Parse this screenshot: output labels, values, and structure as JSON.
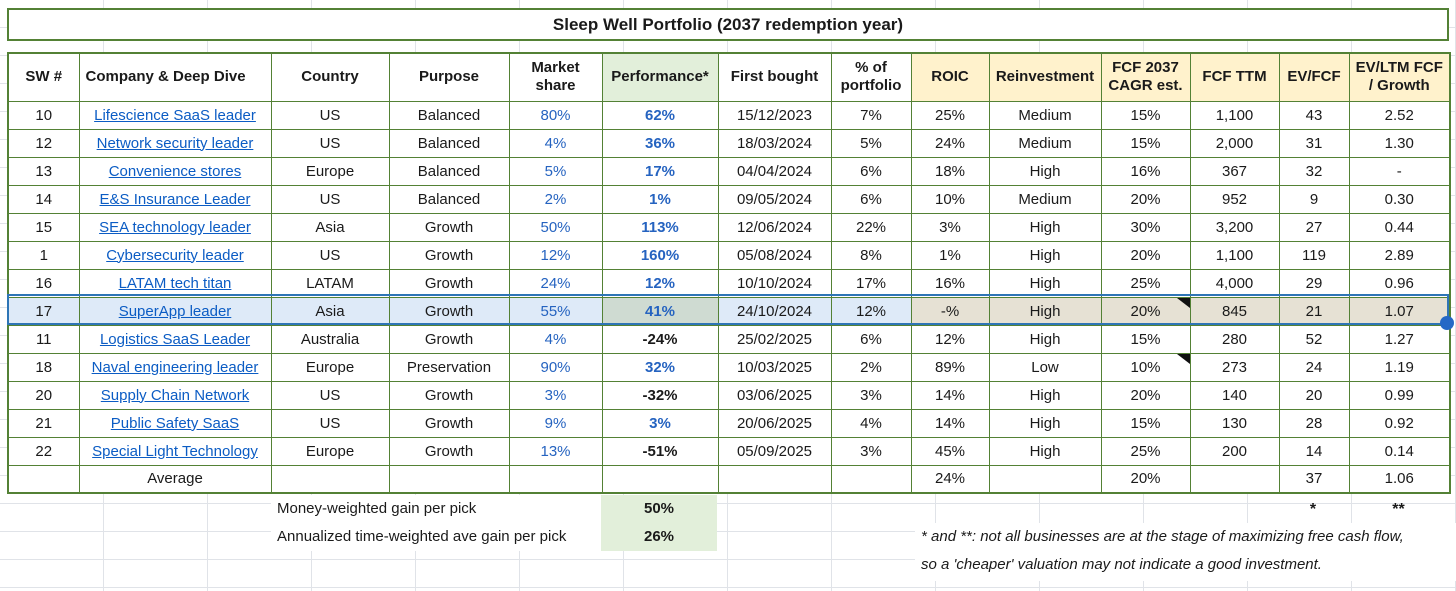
{
  "title": "Sleep Well Portfolio (2037 redemption year)",
  "table": {
    "columns": [
      "SW #",
      "Company & Deep Dive",
      "Country",
      "Purpose",
      "Market share",
      "Performance*",
      "First bought",
      "% of portfolio",
      "ROIC",
      "Reinvestment",
      "FCF 2037 CAGR est.",
      "FCF TTM",
      "EV/FCF",
      "EV/LTM FCF / Growth"
    ],
    "rows": [
      {
        "sw": "10",
        "company": "Lifescience SaaS leader",
        "country": "US",
        "purpose": "Balanced",
        "market_share": "80%",
        "performance": "62%",
        "first_bought": "15/12/2023",
        "pct_portfolio": "7%",
        "roic": "25%",
        "reinvestment": "Medium",
        "fcf_cagr": "15%",
        "fcf_ttm": "1,100",
        "ev_fcf": "43",
        "ev_ltm_fcf_growth": "2.52"
      },
      {
        "sw": "12",
        "company": "Network security leader",
        "country": "US",
        "purpose": "Balanced",
        "market_share": "4%",
        "performance": "36%",
        "first_bought": "18/03/2024",
        "pct_portfolio": "5%",
        "roic": "24%",
        "reinvestment": "Medium",
        "fcf_cagr": "15%",
        "fcf_ttm": "2,000",
        "ev_fcf": "31",
        "ev_ltm_fcf_growth": "1.30"
      },
      {
        "sw": "13",
        "company": "Convenience stores",
        "country": "Europe",
        "purpose": "Balanced",
        "market_share": "5%",
        "performance": "17%",
        "first_bought": "04/04/2024",
        "pct_portfolio": "6%",
        "roic": "18%",
        "reinvestment": "High",
        "fcf_cagr": "16%",
        "fcf_ttm": "367",
        "ev_fcf": "32",
        "ev_ltm_fcf_growth": "-"
      },
      {
        "sw": "14",
        "company": "E&S Insurance Leader",
        "country": "US",
        "purpose": "Balanced",
        "market_share": "2%",
        "performance": "1%",
        "first_bought": "09/05/2024",
        "pct_portfolio": "6%",
        "roic": "10%",
        "reinvestment": "Medium",
        "fcf_cagr": "20%",
        "fcf_ttm": "952",
        "ev_fcf": "9",
        "ev_ltm_fcf_growth": "0.30"
      },
      {
        "sw": "15",
        "company": "SEA technology leader",
        "country": "Asia",
        "purpose": "Growth",
        "market_share": "50%",
        "performance": "113%",
        "first_bought": "12/06/2024",
        "pct_portfolio": "22%",
        "roic": "3%",
        "reinvestment": "High",
        "fcf_cagr": "30%",
        "fcf_ttm": "3,200",
        "ev_fcf": "27",
        "ev_ltm_fcf_growth": "0.44"
      },
      {
        "sw": "1",
        "company": "Cybersecurity leader",
        "country": "US",
        "purpose": "Growth",
        "market_share": "12%",
        "performance": "160%",
        "first_bought": "05/08/2024",
        "pct_portfolio": "8%",
        "roic": "1%",
        "reinvestment": "High",
        "fcf_cagr": "20%",
        "fcf_ttm": "1,100",
        "ev_fcf": "119",
        "ev_ltm_fcf_growth": "2.89"
      },
      {
        "sw": "16",
        "company": "LATAM tech titan",
        "country": "LATAM",
        "purpose": "Growth",
        "market_share": "24%",
        "performance": "12%",
        "first_bought": "10/10/2024",
        "pct_portfolio": "17%",
        "roic": "16%",
        "reinvestment": "High",
        "fcf_cagr": "25%",
        "fcf_ttm": "4,000",
        "ev_fcf": "29",
        "ev_ltm_fcf_growth": "0.96"
      },
      {
        "sw": "17",
        "company": "SuperApp leader",
        "country": "Asia",
        "purpose": "Growth",
        "market_share": "55%",
        "performance": "41%",
        "first_bought": "24/10/2024",
        "pct_portfolio": "12%",
        "roic": "-%",
        "reinvestment": "High",
        "fcf_cagr": "20%",
        "fcf_ttm": "845",
        "ev_fcf": "21",
        "ev_ltm_fcf_growth": "1.07",
        "highlighted": true,
        "note_on_cagr": true
      },
      {
        "sw": "11",
        "company": "Logistics SaaS Leader",
        "country": "Australia",
        "purpose": "Growth",
        "market_share": "4%",
        "performance": "-24%",
        "first_bought": "25/02/2025",
        "pct_portfolio": "6%",
        "roic": "12%",
        "reinvestment": "High",
        "fcf_cagr": "15%",
        "fcf_ttm": "280",
        "ev_fcf": "52",
        "ev_ltm_fcf_growth": "1.27"
      },
      {
        "sw": "18",
        "company": "Naval engineering leader",
        "country": "Europe",
        "purpose": "Preservation",
        "market_share": "90%",
        "performance": "32%",
        "first_bought": "10/03/2025",
        "pct_portfolio": "2%",
        "roic": "89%",
        "reinvestment": "Low",
        "fcf_cagr": "10%",
        "fcf_ttm": "273",
        "ev_fcf": "24",
        "ev_ltm_fcf_growth": "1.19",
        "note_on_cagr": true
      },
      {
        "sw": "20",
        "company": "Supply Chain Network",
        "country": "US",
        "purpose": "Growth",
        "market_share": "3%",
        "performance": "-32%",
        "first_bought": "03/06/2025",
        "pct_portfolio": "3%",
        "roic": "14%",
        "reinvestment": "High",
        "fcf_cagr": "20%",
        "fcf_ttm": "140",
        "ev_fcf": "20",
        "ev_ltm_fcf_growth": "0.99"
      },
      {
        "sw": "21",
        "company": "Public Safety SaaS",
        "country": "US",
        "purpose": "Growth",
        "market_share": "9%",
        "performance": "3%",
        "first_bought": "20/06/2025",
        "pct_portfolio": "4%",
        "roic": "14%",
        "reinvestment": "High",
        "fcf_cagr": "15%",
        "fcf_ttm": "130",
        "ev_fcf": "28",
        "ev_ltm_fcf_growth": "0.92"
      },
      {
        "sw": "22",
        "company": "Special Light Technology",
        "country": "Europe",
        "purpose": "Growth",
        "market_share": "13%",
        "performance": "-51%",
        "first_bought": "05/09/2025",
        "pct_portfolio": "3%",
        "roic": "45%",
        "reinvestment": "High",
        "fcf_cagr": "25%",
        "fcf_ttm": "200",
        "ev_fcf": "14",
        "ev_ltm_fcf_growth": "0.14"
      }
    ],
    "average": {
      "label": "Average",
      "roic": "24%",
      "fcf_cagr": "20%",
      "ev_fcf": "37",
      "ev_ltm_fcf_growth": "1.06"
    }
  },
  "summary": {
    "money_weighted": {
      "label": "Money-weighted gain per pick",
      "value": "50%"
    },
    "annualized": {
      "label": "Annualized time-weighted ave gain per pick",
      "value": "26%"
    },
    "star": "*",
    "double_star": "**"
  },
  "footnote": {
    "line1": "* and **: not all businesses are at the stage of maximizing free cash flow,",
    "line2": "so a 'cheaper' valuation may not indicate a good investment."
  },
  "colors": {
    "table_border_green": "#538135",
    "header_tan_fill": "#FFF2CC",
    "performance_green_fill": "#E2EFDA",
    "selected_row_fill": "#DEEAF8",
    "selection_border_blue": "#2E75B6",
    "hyperlink_blue": "#0B5CC4",
    "value_blue": "#2563C0"
  }
}
